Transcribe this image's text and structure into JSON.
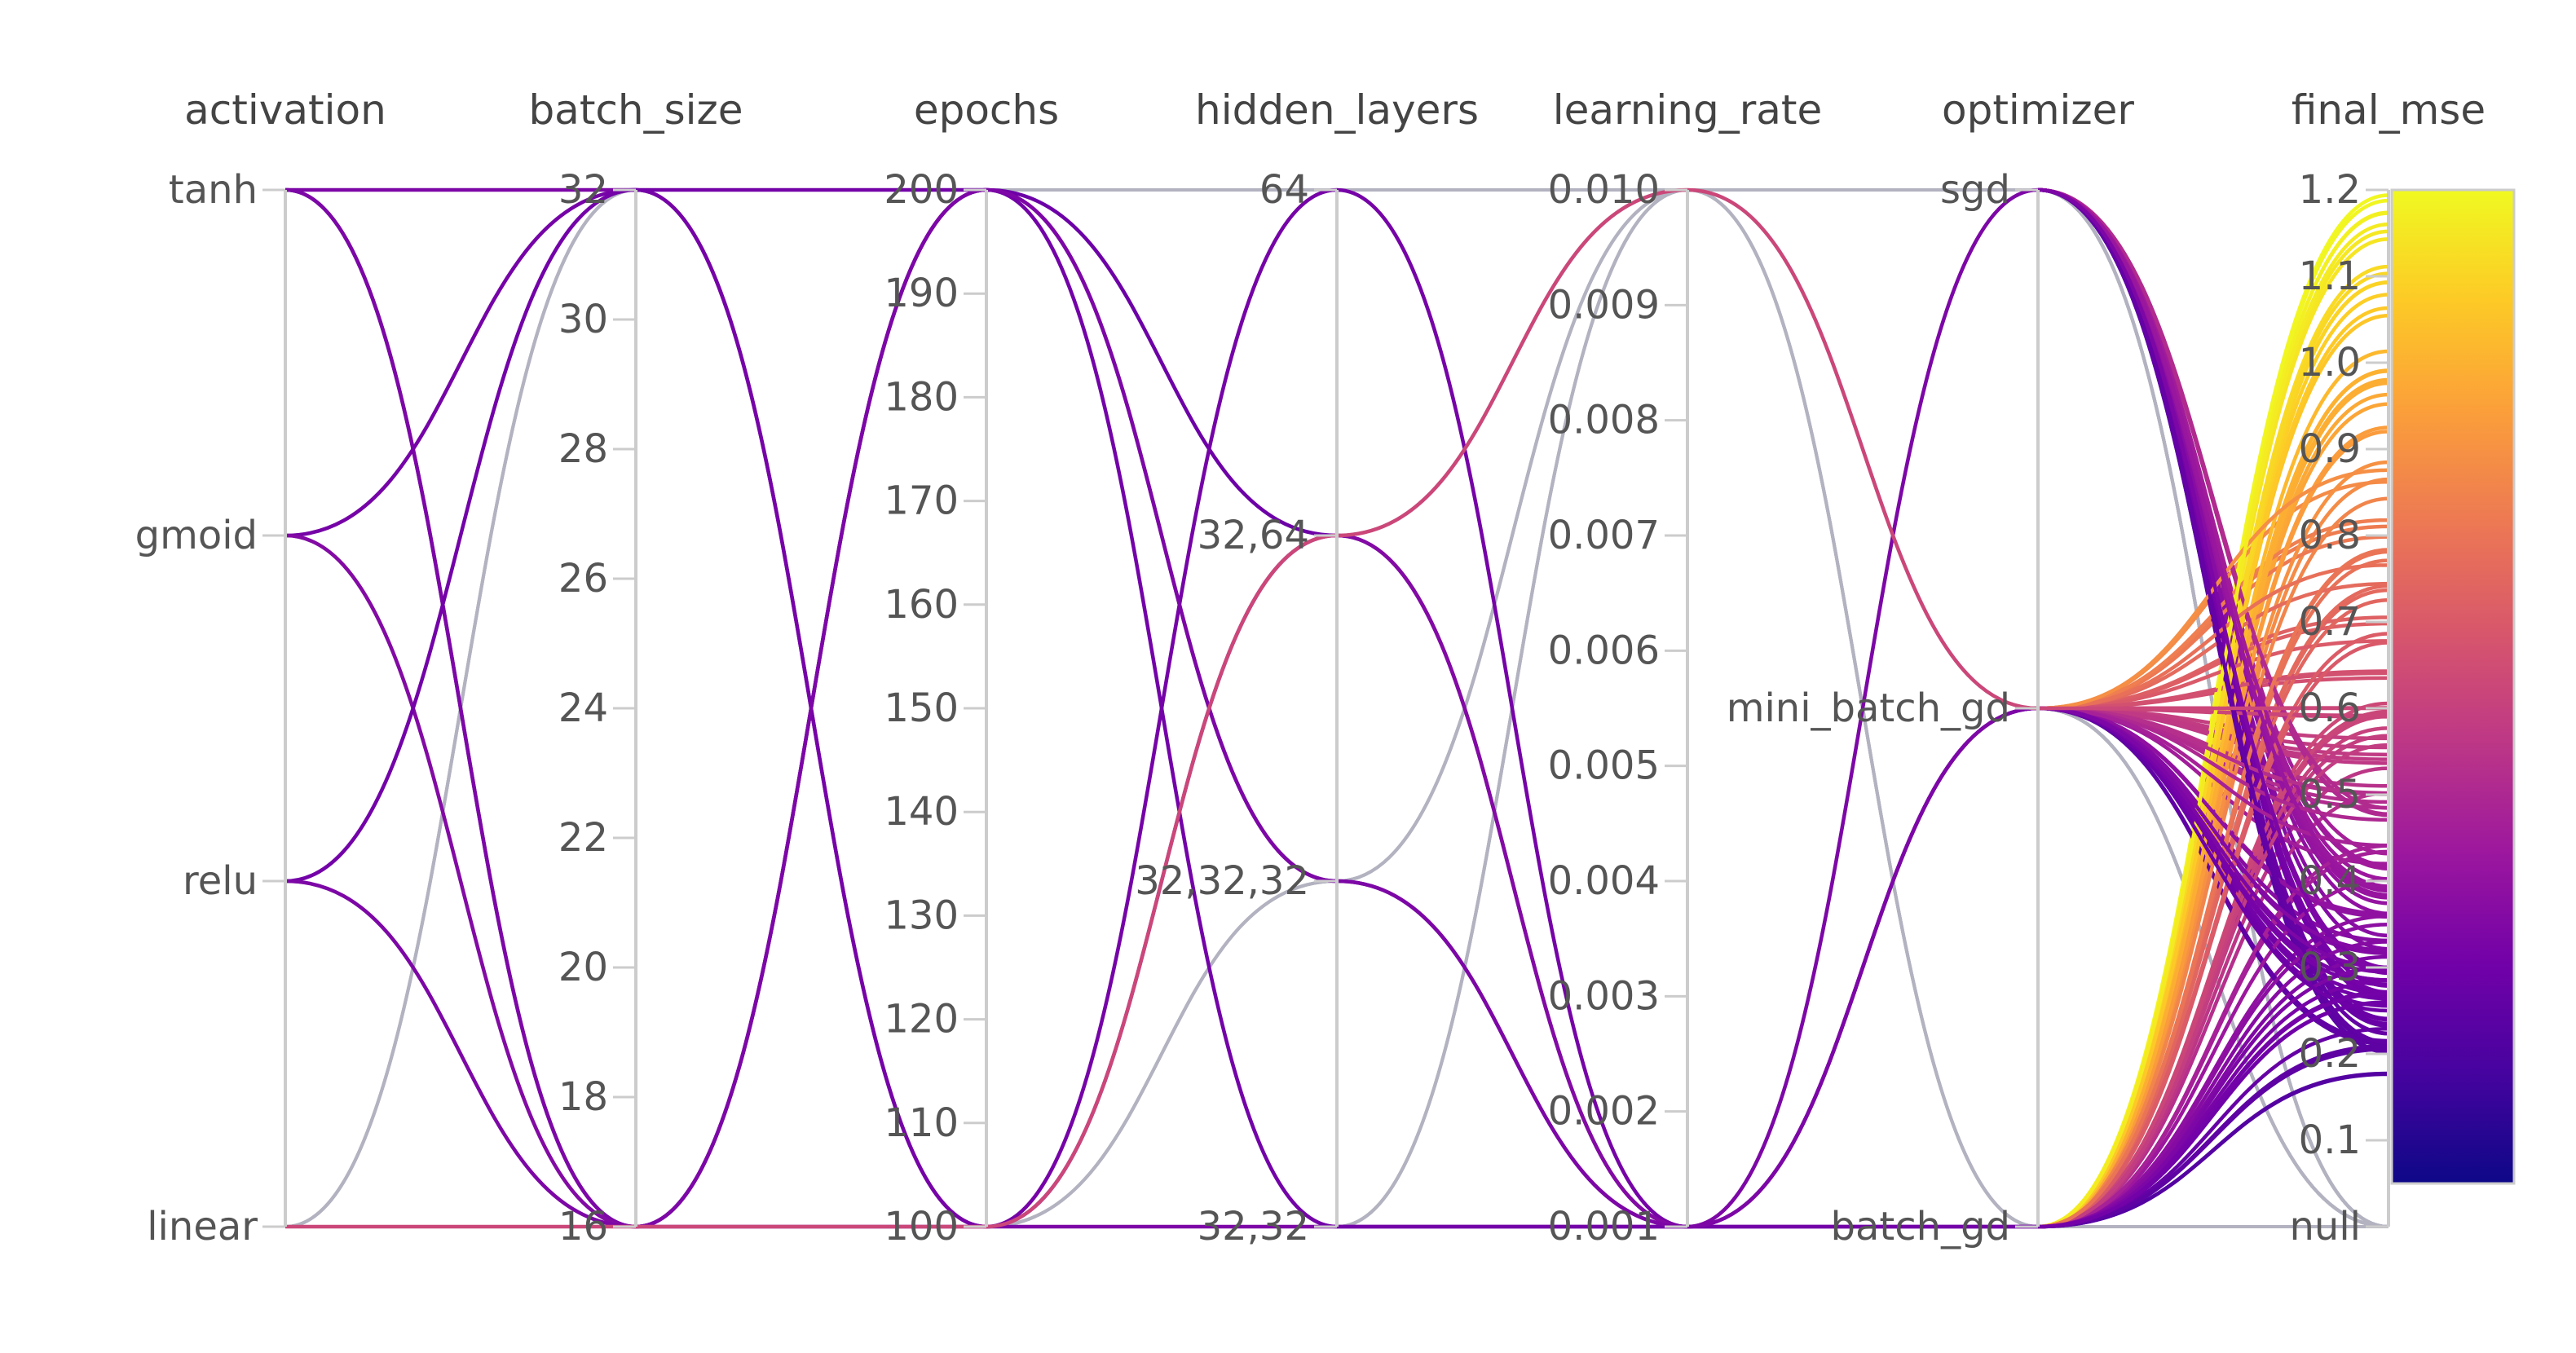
{
  "chart_data": {
    "type": "parallel_coordinates",
    "axes": [
      {
        "name": "activation",
        "kind": "categorical",
        "categories": [
          "tanh",
          "gmoid",
          "relu",
          "linear"
        ],
        "tick_labels": [
          "tanh",
          "gmoid",
          "relu",
          "linear"
        ]
      },
      {
        "name": "batch_size",
        "kind": "numeric",
        "range": [
          16,
          32
        ],
        "tick_labels": [
          "32",
          "30",
          "28",
          "26",
          "24",
          "22",
          "20",
          "18",
          "16"
        ]
      },
      {
        "name": "epochs",
        "kind": "numeric",
        "range": [
          100,
          200
        ],
        "tick_labels": [
          "200",
          "190",
          "180",
          "170",
          "160",
          "150",
          "140",
          "130",
          "120",
          "110",
          "100"
        ]
      },
      {
        "name": "hidden_layers",
        "kind": "categorical",
        "categories": [
          "64",
          "32,64",
          "32,32,32",
          "32,32"
        ],
        "tick_labels": [
          "64",
          "32,64",
          "32,32,32",
          "32,32"
        ]
      },
      {
        "name": "learning_rate",
        "kind": "numeric",
        "range": [
          0.001,
          0.01
        ],
        "tick_labels": [
          "0.010",
          "0.009",
          "0.008",
          "0.007",
          "0.006",
          "0.005",
          "0.004",
          "0.003",
          "0.002",
          "0.001"
        ]
      },
      {
        "name": "optimizer",
        "kind": "categorical",
        "categories": [
          "sgd",
          "mini_batch_gd",
          "batch_gd"
        ],
        "tick_labels": [
          "sgd",
          "mini_batch_gd",
          "batch_gd"
        ]
      },
      {
        "name": "final_mse",
        "kind": "numeric",
        "range": [
          0.0,
          1.2
        ],
        "tick_labels": [
          "1.2",
          "1.1",
          "1.0",
          "0.9",
          "0.8",
          "0.7",
          "0.6",
          "0.5",
          "0.4",
          "0.3",
          "0.2",
          "0.1",
          "null"
        ]
      }
    ],
    "colorscale": {
      "name": "plasma",
      "range": [
        0.0,
        1.2
      ],
      "stops": [
        "#0d0887",
        "#46039f",
        "#7201a8",
        "#9c179e",
        "#bd3786",
        "#d8576b",
        "#ed7953",
        "#fb9f3a",
        "#fdca26",
        "#f0f921"
      ]
    },
    "highlighted_runs": [
      {
        "activation": "tanh",
        "batch_size": 32,
        "epochs": 100,
        "hidden_layers": "32,32",
        "learning_rate": 0.001,
        "optimizer": "batch_gd",
        "final_mse": 0.3
      },
      {
        "activation": "tanh",
        "batch_size": 16,
        "epochs": 200,
        "hidden_layers": "32,64",
        "learning_rate": 0.001,
        "optimizer": "mini_batch_gd",
        "final_mse": 0.25
      },
      {
        "activation": "tanh",
        "batch_size": 16,
        "epochs": 200,
        "hidden_layers": "32,32,32",
        "learning_rate": 0.001,
        "optimizer": "sgd",
        "final_mse": 0.3
      },
      {
        "activation": "gmoid",
        "batch_size": 32,
        "epochs": 100,
        "hidden_layers": "64",
        "learning_rate": 0.001,
        "optimizer": "mini_batch_gd",
        "final_mse": 0.28
      },
      {
        "activation": "gmoid",
        "batch_size": 16,
        "epochs": 100,
        "hidden_layers": "32,64",
        "learning_rate": 0.001,
        "optimizer": "mini_batch_gd",
        "final_mse": 0.32
      },
      {
        "activation": "relu",
        "batch_size": 32,
        "epochs": 200,
        "hidden_layers": "32,32",
        "learning_rate": 0.001,
        "optimizer": "batch_gd",
        "final_mse": 0.27
      },
      {
        "activation": "relu",
        "batch_size": 16,
        "epochs": 200,
        "hidden_layers": "32,32,32",
        "learning_rate": 0.001,
        "optimizer": "mini_batch_gd",
        "final_mse": 0.3
      },
      {
        "activation": "linear",
        "batch_size": 16,
        "epochs": 100,
        "hidden_layers": "32,64",
        "learning_rate": 0.01,
        "optimizer": "mini_batch_gd",
        "final_mse": 0.6
      }
    ]
  }
}
